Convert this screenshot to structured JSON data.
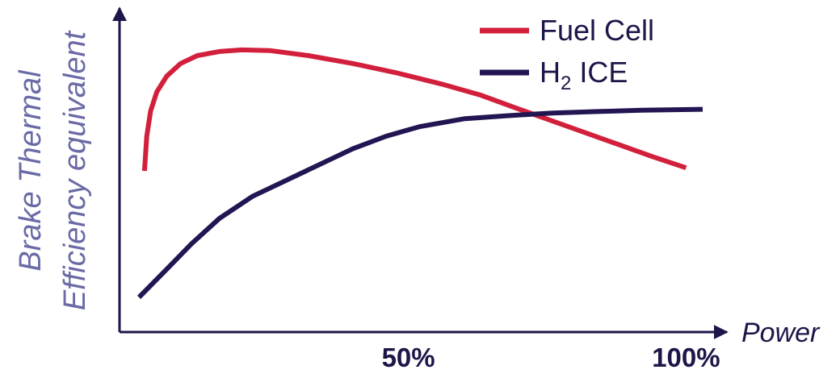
{
  "chart_data": {
    "type": "line",
    "xlabel": "Power",
    "ylabel_lines": [
      "Brake Thermal",
      "Efficiency equivalent"
    ],
    "x_ticks": [
      {
        "value": 50,
        "label": "50%"
      },
      {
        "value": 100,
        "label": "100%"
      }
    ],
    "xlim": [
      -2,
      103
    ],
    "ylim": [
      0,
      100
    ],
    "grid": false,
    "legend_position": "top-right",
    "series": [
      {
        "name": "Fuel Cell",
        "name_main": "Fuel Cell",
        "name_sub": "",
        "name_tail": "",
        "color": "#d2203c",
        "points": [
          [
            2.5,
            51
          ],
          [
            2.9,
            62
          ],
          [
            3.6,
            70
          ],
          [
            4.7,
            76
          ],
          [
            6.5,
            81
          ],
          [
            9,
            85
          ],
          [
            12,
            87.5
          ],
          [
            16,
            88.8
          ],
          [
            20,
            89.3
          ],
          [
            25,
            89.1
          ],
          [
            32,
            87.5
          ],
          [
            40,
            85
          ],
          [
            48,
            82
          ],
          [
            56,
            78.5
          ],
          [
            63,
            75
          ],
          [
            70,
            70.5
          ],
          [
            78,
            65.5
          ],
          [
            86,
            60.5
          ],
          [
            94,
            55.5
          ],
          [
            100,
            52
          ]
        ]
      },
      {
        "name": "H2 ICE",
        "name_main": "H",
        "name_sub": "2",
        "name_tail": " ICE",
        "color": "#221552",
        "points": [
          [
            1.5,
            11
          ],
          [
            6,
            19
          ],
          [
            11,
            28
          ],
          [
            16,
            36
          ],
          [
            22,
            43
          ],
          [
            28,
            48
          ],
          [
            34,
            53
          ],
          [
            40,
            58
          ],
          [
            46,
            62
          ],
          [
            52,
            65
          ],
          [
            60,
            67.5
          ],
          [
            68,
            68.5
          ],
          [
            76,
            69.3
          ],
          [
            84,
            69.8
          ],
          [
            92,
            70.2
          ],
          [
            103,
            70.5
          ]
        ]
      }
    ]
  }
}
